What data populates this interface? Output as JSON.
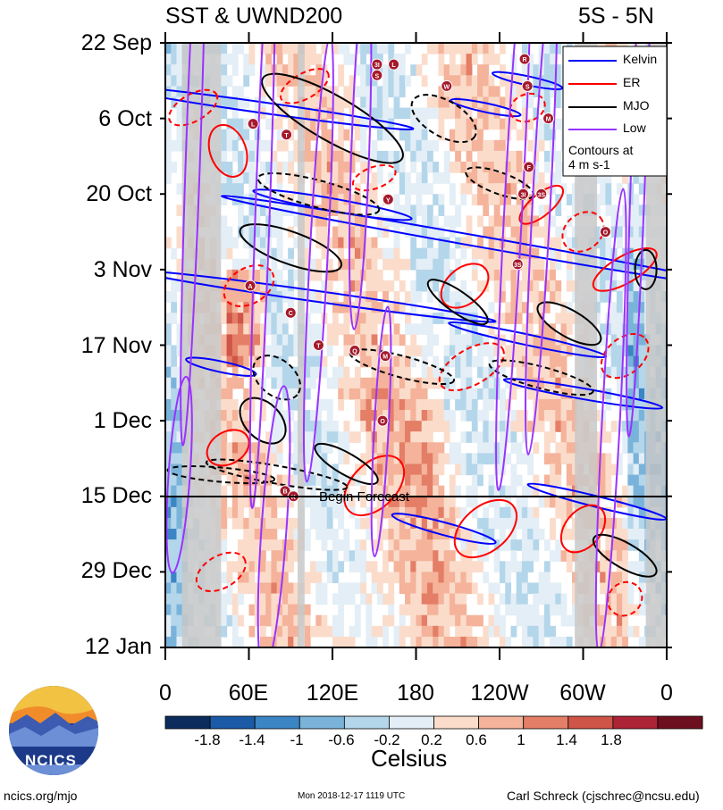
{
  "header": {
    "left_title": "SST & UWND200",
    "right_title": "5S - 5N"
  },
  "chart_data": {
    "type": "heatmap",
    "title": "SST & UWND200",
    "subtitle": "5S - 5N",
    "x_ticks": [
      "0",
      "60E",
      "120E",
      "180",
      "120W",
      "60W",
      "0"
    ],
    "y_ticks": [
      "22 Sep",
      "6 Oct",
      "20 Oct",
      "3 Nov",
      "17 Nov",
      "1 Dec",
      "15 Dec",
      "29 Dec",
      "12 Jan"
    ],
    "xlim": [
      0,
      360
    ],
    "ylim_days": [
      0,
      112
    ],
    "forecast_label": "Begin Forecast",
    "forecast_day": 84,
    "legend": {
      "entries": [
        {
          "name": "Kelvin",
          "color": "#0000ff"
        },
        {
          "name": "ER",
          "color": "#ff0000"
        },
        {
          "name": "MJO",
          "color": "#000000"
        },
        {
          "name": "Low",
          "color": "#9933ff"
        }
      ],
      "note_lines": [
        "Contours at",
        "4 m s-1"
      ],
      "placement": "top-right"
    },
    "colorbar": {
      "label": "Celsius",
      "tick_labels": [
        "-1.8",
        "-1.4",
        "-1",
        "-0.6",
        "-0.2",
        "0.2",
        "0.6",
        "1",
        "1.4",
        "1.8"
      ],
      "colors": [
        "#0b2c5c",
        "#1a5aa6",
        "#3b85c4",
        "#7ab3da",
        "#b4d6ea",
        "#e3eef6",
        "#ffffff",
        "#fbdccb",
        "#f4b39a",
        "#e47e67",
        "#cf5548",
        "#ac2435",
        "#6e0f1f"
      ]
    },
    "cyclone_symbols": [
      {
        "letter": "3I",
        "lon": 152,
        "day": 4
      },
      {
        "letter": "L",
        "lon": 164,
        "day": 4
      },
      {
        "letter": "S",
        "lon": 152,
        "day": 6
      },
      {
        "letter": "W",
        "lon": 202,
        "day": 8
      },
      {
        "letter": "R",
        "lon": 258,
        "day": 3
      },
      {
        "letter": "S",
        "lon": 260,
        "day": 8
      },
      {
        "letter": "M",
        "lon": 275,
        "day": 14
      },
      {
        "letter": "L",
        "lon": 63,
        "day": 15
      },
      {
        "letter": "T",
        "lon": 87,
        "day": 17
      },
      {
        "letter": "F",
        "lon": 261,
        "day": 23
      },
      {
        "letter": "3I",
        "lon": 257,
        "day": 28
      },
      {
        "letter": "3S",
        "lon": 270,
        "day": 28
      },
      {
        "letter": "Y",
        "lon": 160,
        "day": 29
      },
      {
        "letter": "O",
        "lon": 316,
        "day": 35
      },
      {
        "letter": "3S",
        "lon": 253,
        "day": 41
      },
      {
        "letter": "A",
        "lon": 61,
        "day": 45
      },
      {
        "letter": "C",
        "lon": 90,
        "day": 50
      },
      {
        "letter": "T",
        "lon": 110,
        "day": 56
      },
      {
        "letter": "Q",
        "lon": 136,
        "day": 57
      },
      {
        "letter": "M",
        "lon": 158,
        "day": 58
      },
      {
        "letter": "O",
        "lon": 156,
        "day": 70
      },
      {
        "letter": "B",
        "lon": 86,
        "day": 83
      },
      {
        "letter": "K",
        "lon": 92,
        "day": 84
      }
    ]
  },
  "colorbar": {
    "label": "Celsius",
    "tick_labels": [
      "-1.8",
      "-1.4",
      "-1",
      "-0.6",
      "-0.2",
      "0.2",
      "0.6",
      "1",
      "1.4",
      "1.8"
    ]
  },
  "logo": {
    "text": "NCICS"
  },
  "footer": {
    "left": "ncics.org/mjo",
    "center": "Mon 2018-12-17 1119 UTC",
    "right": "Carl Schreck (cjschrec@ncsu.edu)"
  }
}
